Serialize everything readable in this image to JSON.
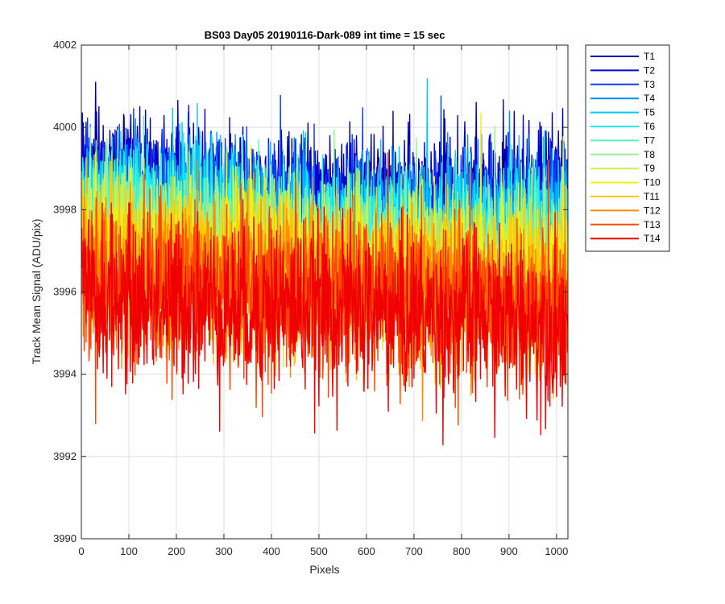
{
  "chart_data": {
    "type": "line",
    "title": "BS03 Day05 20190116-Dark-089 int time = 15 sec",
    "xlabel": "Pixels",
    "ylabel": "Track Mean Signal (ADU/pix)",
    "xlim": [
      0,
      1024
    ],
    "ylim": [
      3990,
      4002
    ],
    "xticks": [
      "0",
      "100",
      "200",
      "300",
      "400",
      "500",
      "600",
      "700",
      "800",
      "900",
      "1000"
    ],
    "yticks": [
      "3990",
      "3992",
      "3994",
      "3996",
      "3998",
      "4000",
      "4002"
    ],
    "grid": true,
    "legend_position": "outside-top-right",
    "series": [
      {
        "name": "T1",
        "color": "#0000aa",
        "mean_start": 3998.9,
        "mean_mid": 3998.3,
        "mean_end": 3998.5,
        "std": 0.75
      },
      {
        "name": "T2",
        "color": "#0000dc",
        "mean_start": 3998.7,
        "mean_mid": 3998.0,
        "mean_end": 3998.3,
        "std": 0.75
      },
      {
        "name": "T3",
        "color": "#0a3cff",
        "mean_start": 3998.5,
        "mean_mid": 3997.8,
        "mean_end": 3998.0,
        "std": 0.8
      },
      {
        "name": "T4",
        "color": "#0a8cff",
        "mean_start": 3998.3,
        "mean_mid": 3997.6,
        "mean_end": 3997.8,
        "std": 0.8
      },
      {
        "name": "T5",
        "color": "#00c8ff",
        "mean_start": 3998.2,
        "mean_mid": 3997.5,
        "mean_end": 3997.6,
        "std": 0.85
      },
      {
        "name": "T6",
        "color": "#14f0f0",
        "mean_start": 3998.1,
        "mean_mid": 3997.3,
        "mean_end": 3997.4,
        "std": 0.85
      },
      {
        "name": "T7",
        "color": "#5af0c8",
        "mean_start": 3997.9,
        "mean_mid": 3997.1,
        "mean_end": 3997.2,
        "std": 0.85
      },
      {
        "name": "T8",
        "color": "#96f096",
        "mean_start": 3997.7,
        "mean_mid": 3996.9,
        "mean_end": 3997.0,
        "std": 0.85
      },
      {
        "name": "T9",
        "color": "#c8f050",
        "mean_start": 3997.4,
        "mean_mid": 3996.7,
        "mean_end": 3996.8,
        "std": 0.9
      },
      {
        "name": "T10",
        "color": "#f0f014",
        "mean_start": 3997.1,
        "mean_mid": 3996.5,
        "mean_end": 3996.5,
        "std": 0.9
      },
      {
        "name": "T11",
        "color": "#ffc800",
        "mean_start": 3996.8,
        "mean_mid": 3996.3,
        "mean_end": 3996.2,
        "std": 0.95
      },
      {
        "name": "T12",
        "color": "#ff8c00",
        "mean_start": 3996.5,
        "mean_mid": 3996.1,
        "mean_end": 3995.9,
        "std": 0.95
      },
      {
        "name": "T13",
        "color": "#ff4600",
        "mean_start": 3996.2,
        "mean_mid": 3995.9,
        "mean_end": 3995.6,
        "std": 1.0
      },
      {
        "name": "T14",
        "color": "#f00000",
        "mean_start": 3995.8,
        "mean_mid": 3995.6,
        "mean_end": 3995.2,
        "std": 1.0
      }
    ]
  }
}
